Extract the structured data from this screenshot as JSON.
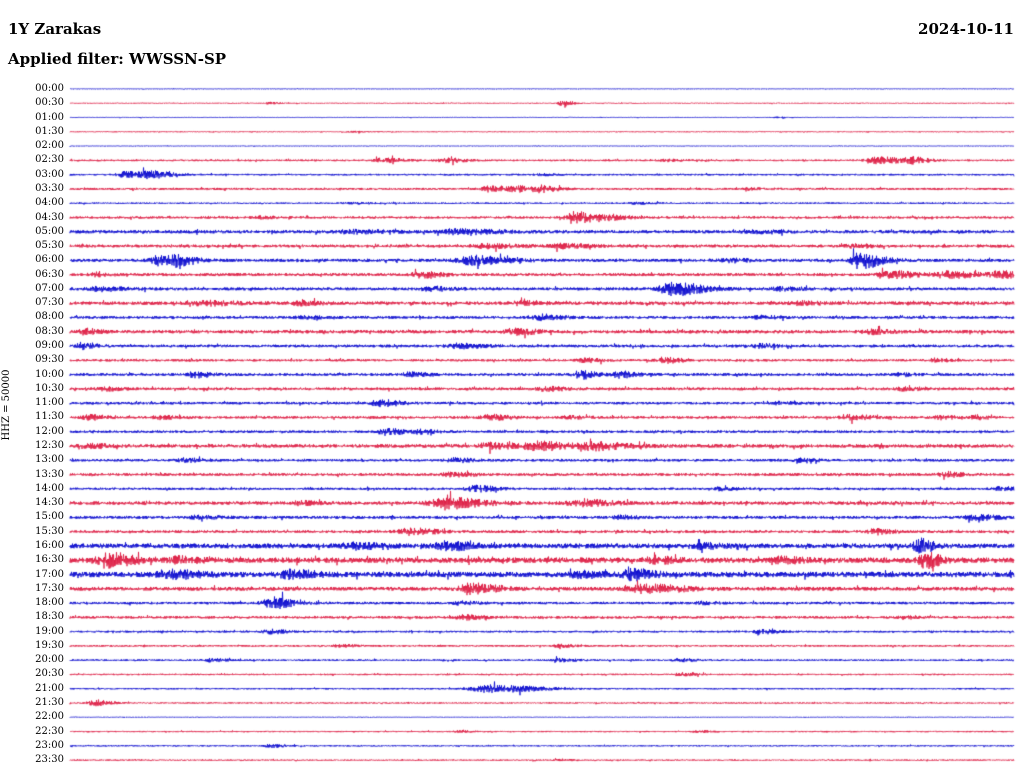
{
  "header": {
    "station": "1Y Zarakas",
    "date": "2024-10-11",
    "filter_label": "Applied filter: WWSSN-SP"
  },
  "axis": {
    "scale_label": "HHZ = 50000"
  },
  "colors": {
    "blue": "#0000cd",
    "red": "#dc143c",
    "text": "#000000",
    "background": "#ffffff"
  },
  "chart_data": {
    "type": "line",
    "variant": "helicorder-dayplot",
    "title": "1Y Zarakas",
    "date": "2024-10-11",
    "filter": "WWSSN-SP",
    "ylabel": "HHZ = 50000",
    "row_duration_minutes": 30,
    "legend": "none",
    "grid": false,
    "rows": [
      {
        "time": "00:00",
        "color": "blue",
        "base": 0.35,
        "bursts": []
      },
      {
        "time": "00:30",
        "color": "red",
        "base": 0.5,
        "bursts": [
          [
            0.212,
            3,
            1.2
          ],
          [
            0.522,
            3,
            2.8
          ]
        ]
      },
      {
        "time": "01:00",
        "color": "blue",
        "base": 0.4,
        "bursts": [
          [
            0.75,
            4,
            0.6
          ]
        ]
      },
      {
        "time": "01:30",
        "color": "red",
        "base": 0.5,
        "bursts": [
          [
            0.3,
            5,
            0.5
          ]
        ]
      },
      {
        "time": "02:00",
        "color": "blue",
        "base": 0.35,
        "bursts": []
      },
      {
        "time": "02:30",
        "color": "red",
        "base": 0.9,
        "bursts": [
          [
            0.332,
            6,
            2.2
          ],
          [
            0.399,
            6,
            2.0
          ],
          [
            0.63,
            5,
            1.0
          ],
          [
            0.856,
            8,
            3.2
          ],
          [
            0.893,
            5,
            2.4
          ]
        ]
      },
      {
        "time": "03:00",
        "color": "blue",
        "base": 0.9,
        "bursts": [
          [
            0.058,
            5,
            3.0
          ],
          [
            0.085,
            6,
            3.4
          ],
          [
            0.5,
            5,
            0.8
          ]
        ]
      },
      {
        "time": "03:30",
        "color": "red",
        "base": 1.1,
        "bursts": [
          [
            0.445,
            6,
            2.6
          ],
          [
            0.474,
            5,
            2.2
          ],
          [
            0.498,
            5,
            2.8
          ],
          [
            0.72,
            5,
            1.0
          ]
        ]
      },
      {
        "time": "04:00",
        "color": "blue",
        "base": 0.8,
        "bursts": [
          [
            0.3,
            6,
            0.8
          ],
          [
            0.6,
            5,
            0.8
          ]
        ]
      },
      {
        "time": "04:30",
        "color": "red",
        "base": 1.2,
        "bursts": [
          [
            0.2,
            5,
            1.0
          ],
          [
            0.535,
            6,
            5.5
          ],
          [
            0.572,
            6,
            2.2
          ]
        ]
      },
      {
        "time": "05:00",
        "color": "blue",
        "base": 1.6,
        "bursts": [
          [
            0.3,
            10,
            1.5
          ],
          [
            0.41,
            12,
            2.2
          ],
          [
            0.73,
            8,
            1.2
          ]
        ]
      },
      {
        "time": "05:30",
        "color": "red",
        "base": 1.5,
        "bursts": [
          [
            0.44,
            10,
            1.8
          ],
          [
            0.52,
            8,
            1.8
          ],
          [
            0.83,
            6,
            1.4
          ]
        ]
      },
      {
        "time": "06:00",
        "color": "blue",
        "base": 1.6,
        "bursts": [
          [
            0.095,
            6,
            4.5
          ],
          [
            0.11,
            6,
            3.5
          ],
          [
            0.426,
            10,
            4.0
          ],
          [
            0.699,
            5,
            1.6
          ],
          [
            0.834,
            4,
            7.5
          ],
          [
            0.85,
            6,
            3.0
          ]
        ]
      },
      {
        "time": "06:30",
        "color": "red",
        "base": 1.5,
        "bursts": [
          [
            0.026,
            4,
            1.6
          ],
          [
            0.371,
            6,
            2.6
          ],
          [
            0.868,
            8,
            3.2
          ],
          [
            0.932,
            8,
            3.0
          ],
          [
            0.985,
            6,
            3.0
          ]
        ]
      },
      {
        "time": "07:00",
        "color": "blue",
        "base": 1.5,
        "bursts": [
          [
            0.032,
            8,
            1.8
          ],
          [
            0.381,
            6,
            2.0
          ],
          [
            0.638,
            9,
            6.0
          ],
          [
            0.752,
            6,
            1.8
          ]
        ]
      },
      {
        "time": "07:30",
        "color": "red",
        "base": 1.7,
        "bursts": [
          [
            0.143,
            10,
            1.8
          ],
          [
            0.244,
            6,
            1.6
          ],
          [
            0.477,
            6,
            1.6
          ],
          [
            0.773,
            6,
            1.6
          ]
        ]
      },
      {
        "time": "08:00",
        "color": "blue",
        "base": 1.4,
        "bursts": [
          [
            0.25,
            8,
            1.0
          ],
          [
            0.498,
            6,
            2.6
          ],
          [
            0.731,
            5,
            1.5
          ]
        ]
      },
      {
        "time": "08:30",
        "color": "red",
        "base": 1.7,
        "bursts": [
          [
            0.016,
            4,
            2.4
          ],
          [
            0.471,
            6,
            3.0
          ],
          [
            0.847,
            6,
            1.8
          ]
        ]
      },
      {
        "time": "09:00",
        "color": "blue",
        "base": 1.4,
        "bursts": [
          [
            0.013,
            4,
            3.2
          ],
          [
            0.411,
            8,
            2.0
          ],
          [
            0.731,
            5,
            1.8
          ]
        ]
      },
      {
        "time": "09:30",
        "color": "red",
        "base": 1.2,
        "bursts": [
          [
            0.545,
            5,
            1.8
          ],
          [
            0.627,
            6,
            2.6
          ],
          [
            0.916,
            4,
            1.6
          ]
        ]
      },
      {
        "time": "10:00",
        "color": "blue",
        "base": 1.4,
        "bursts": [
          [
            0.132,
            5,
            2.6
          ],
          [
            0.36,
            5,
            1.8
          ],
          [
            0.54,
            4,
            4.5
          ],
          [
            0.58,
            5,
            3.0
          ],
          [
            0.879,
            4,
            1.4
          ]
        ]
      },
      {
        "time": "10:30",
        "color": "red",
        "base": 1.4,
        "bursts": [
          [
            0.037,
            5,
            1.6
          ],
          [
            0.503,
            6,
            1.8
          ],
          [
            0.884,
            5,
            1.6
          ]
        ]
      },
      {
        "time": "11:00",
        "color": "blue",
        "base": 1.3,
        "bursts": [
          [
            0.328,
            6,
            3.0
          ],
          [
            0.752,
            5,
            1.4
          ]
        ]
      },
      {
        "time": "11:30",
        "color": "red",
        "base": 1.3,
        "bursts": [
          [
            0.021,
            5,
            2.4
          ],
          [
            0.095,
            5,
            1.6
          ],
          [
            0.445,
            6,
            2.4
          ],
          [
            0.53,
            5,
            1.6
          ],
          [
            0.826,
            6,
            2.4
          ],
          [
            0.922,
            4,
            1.6
          ],
          [
            0.959,
            4,
            1.8
          ]
        ]
      },
      {
        "time": "12:00",
        "color": "blue",
        "base": 1.3,
        "bursts": [
          [
            0.334,
            5,
            3.0
          ],
          [
            0.371,
            5,
            1.8
          ]
        ]
      },
      {
        "time": "12:30",
        "color": "red",
        "base": 1.8,
        "bursts": [
          [
            0.021,
            5,
            1.8
          ],
          [
            0.445,
            7,
            3.2
          ],
          [
            0.495,
            9,
            3.8
          ],
          [
            0.556,
            10,
            3.4
          ]
        ]
      },
      {
        "time": "13:00",
        "color": "blue",
        "base": 1.3,
        "bursts": [
          [
            0.122,
            5,
            2.4
          ],
          [
            0.408,
            6,
            1.8
          ],
          [
            0.773,
            5,
            1.4
          ]
        ]
      },
      {
        "time": "13:30",
        "color": "red",
        "base": 1.4,
        "bursts": [
          [
            0.403,
            6,
            1.8
          ],
          [
            0.927,
            5,
            2.4
          ]
        ]
      },
      {
        "time": "14:00",
        "color": "blue",
        "base": 1.2,
        "bursts": [
          [
            0.429,
            6,
            3.0
          ],
          [
            0.689,
            5,
            1.4
          ],
          [
            0.985,
            5,
            1.6
          ]
        ]
      },
      {
        "time": "14:30",
        "color": "red",
        "base": 1.7,
        "bursts": [
          [
            0.244,
            5,
            1.6
          ],
          [
            0.399,
            11,
            4.8
          ],
          [
            0.54,
            9,
            3.0
          ]
        ]
      },
      {
        "time": "15:00",
        "color": "blue",
        "base": 1.5,
        "bursts": [
          [
            0.138,
            6,
            1.6
          ],
          [
            0.583,
            5,
            1.4
          ],
          [
            0.959,
            7,
            2.4
          ]
        ]
      },
      {
        "time": "15:30",
        "color": "red",
        "base": 1.4,
        "bursts": [
          [
            0.36,
            8,
            3.0
          ],
          [
            0.853,
            5,
            2.4
          ]
        ]
      },
      {
        "time": "16:00",
        "color": "blue",
        "base": 2.4,
        "bursts": [
          [
            0.299,
            7,
            2.6
          ],
          [
            0.399,
            8,
            3.4
          ],
          [
            0.667,
            6,
            2.0
          ],
          [
            0.9,
            4,
            6.5
          ]
        ]
      },
      {
        "time": "16:30",
        "color": "red",
        "base": 2.7,
        "bursts": [
          [
            0.039,
            7,
            6.5
          ],
          [
            0.117,
            6,
            3.0
          ],
          [
            0.62,
            6,
            2.2
          ],
          [
            0.752,
            6,
            2.2
          ],
          [
            0.906,
            4,
            7.5
          ]
        ]
      },
      {
        "time": "17:00",
        "color": "blue",
        "base": 2.7,
        "bursts": [
          [
            0.106,
            8,
            3.4
          ],
          [
            0.233,
            8,
            3.2
          ],
          [
            0.54,
            6,
            2.4
          ],
          [
            0.595,
            6,
            4.5
          ]
        ]
      },
      {
        "time": "17:30",
        "color": "red",
        "base": 1.9,
        "bursts": [
          [
            0.424,
            8,
            4.5
          ],
          [
            0.609,
            11,
            3.6
          ]
        ]
      },
      {
        "time": "18:00",
        "color": "blue",
        "base": 1.3,
        "bursts": [
          [
            0.214,
            7,
            5.5
          ],
          [
            0.413,
            5,
            1.4
          ],
          [
            0.667,
            5,
            1.2
          ]
        ]
      },
      {
        "time": "18:30",
        "color": "red",
        "base": 1.3,
        "bursts": [
          [
            0.418,
            6,
            2.0
          ],
          [
            0.884,
            4,
            1.4
          ]
        ]
      },
      {
        "time": "19:00",
        "color": "blue",
        "base": 1.0,
        "bursts": [
          [
            0.212,
            5,
            2.0
          ],
          [
            0.731,
            5,
            2.0
          ]
        ]
      },
      {
        "time": "19:30",
        "color": "red",
        "base": 0.9,
        "bursts": [
          [
            0.286,
            5,
            1.2
          ],
          [
            0.519,
            5,
            1.2
          ]
        ]
      },
      {
        "time": "20:00",
        "color": "blue",
        "base": 0.9,
        "bursts": [
          [
            0.148,
            5,
            1.4
          ],
          [
            0.519,
            5,
            1.6
          ],
          [
            0.646,
            5,
            1.2
          ]
        ]
      },
      {
        "time": "20:30",
        "color": "red",
        "base": 0.8,
        "bursts": [
          [
            0.646,
            5,
            1.2
          ]
        ]
      },
      {
        "time": "21:00",
        "color": "blue",
        "base": 0.8,
        "bursts": [
          [
            0.445,
            14,
            3.6
          ]
        ]
      },
      {
        "time": "21:30",
        "color": "red",
        "base": 0.7,
        "bursts": [
          [
            0.026,
            5,
            2.6
          ]
        ]
      },
      {
        "time": "22:00",
        "color": "blue",
        "base": 0.35,
        "bursts": []
      },
      {
        "time": "22:30",
        "color": "red",
        "base": 0.7,
        "bursts": [
          [
            0.413,
            4,
            0.9
          ],
          [
            0.667,
            4,
            0.9
          ]
        ]
      },
      {
        "time": "23:00",
        "color": "blue",
        "base": 0.7,
        "bursts": [
          [
            0.212,
            4,
            1.6
          ]
        ]
      },
      {
        "time": "23:30",
        "color": "red",
        "base": 0.7,
        "bursts": [
          [
            0.52,
            4,
            0.8
          ]
        ]
      }
    ]
  }
}
